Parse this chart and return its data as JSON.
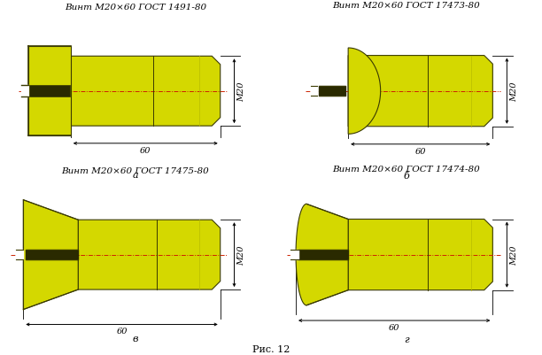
{
  "bg_color": "#ffffff",
  "screw_fill": "#d4d800",
  "screw_edge": "#3a3a00",
  "screw_dark": "#909010",
  "screw_shade": "#b8bc00",
  "slot_color": "#2a2a00",
  "title_a": "Винт М20×60 ГОСТ 1491-80",
  "title_b": "Винт М20×60 ГОСТ 17473-80",
  "title_c": "Винт М20×60 ГОСТ 17475-80",
  "title_d": "Винт М20×60 ГОСТ 17474-80",
  "label_a": "а",
  "label_b": "б",
  "label_c": "в",
  "label_d": "г",
  "caption": "Рис. 12",
  "dim_60": "60",
  "dim_M20": "М20"
}
